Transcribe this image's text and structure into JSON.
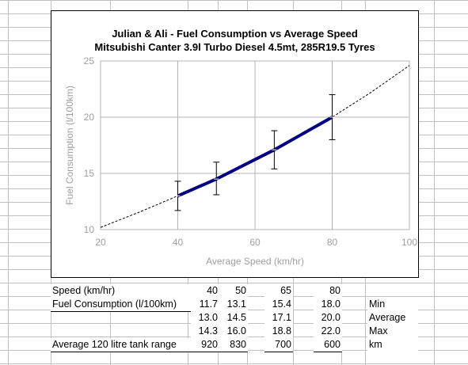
{
  "chart_data": {
    "type": "line",
    "title": "Julian & Ali - Fuel Consumption vs Average Speed",
    "subtitle": "Mitsubishi Canter 3.9l Turbo Diesel 4.5mt, 285R19.5 Tyres",
    "xlabel": "Average Speed (km/hr)",
    "ylabel": "Fuel Consumption (l/100km)",
    "xlim": [
      20,
      100
    ],
    "ylim": [
      10,
      25
    ],
    "x_ticks": [
      "20",
      "40",
      "60",
      "80",
      "100"
    ],
    "y_ticks": [
      "10",
      "15",
      "20",
      "25"
    ],
    "grid": true,
    "legend": "none",
    "series": [
      {
        "style": "solid",
        "color": "#000080",
        "x": [
          40,
          50,
          65,
          80
        ],
        "y": [
          13.0,
          14.5,
          17.1,
          20.0
        ],
        "error_low": [
          11.7,
          13.1,
          15.4,
          18.0
        ],
        "error_high": [
          14.3,
          16.0,
          18.8,
          22.0
        ]
      },
      {
        "style": "dashed-trend",
        "color": "#000000",
        "x": [
          20,
          30,
          40,
          50,
          60,
          70,
          80,
          90,
          100
        ],
        "y": [
          10.2,
          11.55,
          13.0,
          14.6,
          16.3,
          18.1,
          20.0,
          22.2,
          24.6
        ]
      }
    ]
  },
  "table": {
    "speed_label": "Speed (km/hr)",
    "speeds": [
      "40",
      "50",
      "65",
      "80"
    ],
    "fuel_label": "Fuel Consumption (l/100km)",
    "min_values": [
      "11.7",
      "13.1",
      "15.4",
      "18.0"
    ],
    "avg_values": [
      "13.0",
      "14.5",
      "17.1",
      "20.0"
    ],
    "max_values": [
      "14.3",
      "16.0",
      "18.8",
      "22.0"
    ],
    "min_label": "Min",
    "avg_label": "Average",
    "max_label": "Max",
    "range_label": "Average 120 litre tank range",
    "ranges": [
      "920",
      "830",
      "700",
      "600"
    ],
    "range_unit": "km"
  }
}
